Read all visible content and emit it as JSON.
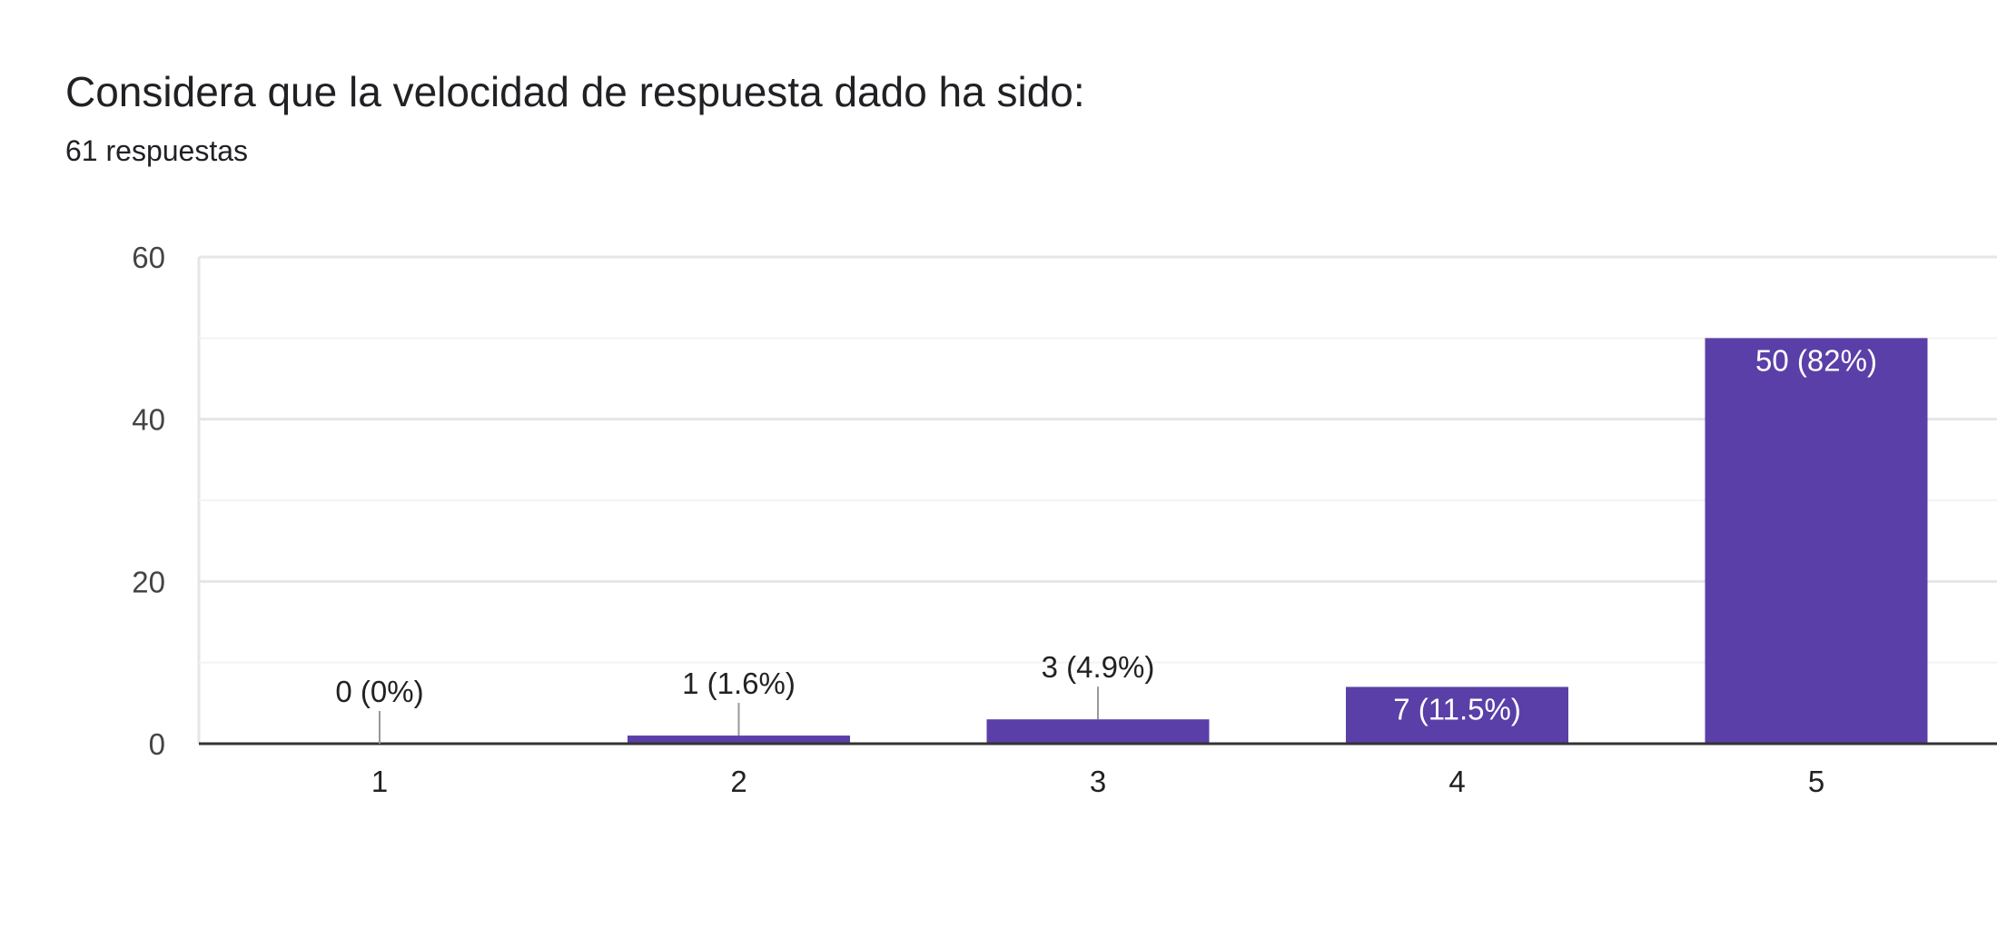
{
  "header": {
    "title": "Considera que la velocidad de respuesta dado ha sido:",
    "subtitle": "61 respuestas"
  },
  "chart_data": {
    "type": "bar",
    "title": "Considera que la velocidad de respuesta dado ha sido:",
    "subtitle": "61 respuestas",
    "categories": [
      "1",
      "2",
      "3",
      "4",
      "5"
    ],
    "values": [
      0,
      1,
      3,
      7,
      50
    ],
    "data_labels": [
      "0 (0%)",
      "1 (1.6%)",
      "3 (4.9%)",
      "7 (11.5%)",
      "50 (82%)"
    ],
    "ylim": [
      0,
      60
    ],
    "yticks": [
      0,
      20,
      40,
      60
    ],
    "ytick_labels": [
      "0",
      "20",
      "40",
      "60"
    ],
    "grid": true,
    "legend": "none",
    "bar_color": "#5a3fa8"
  }
}
